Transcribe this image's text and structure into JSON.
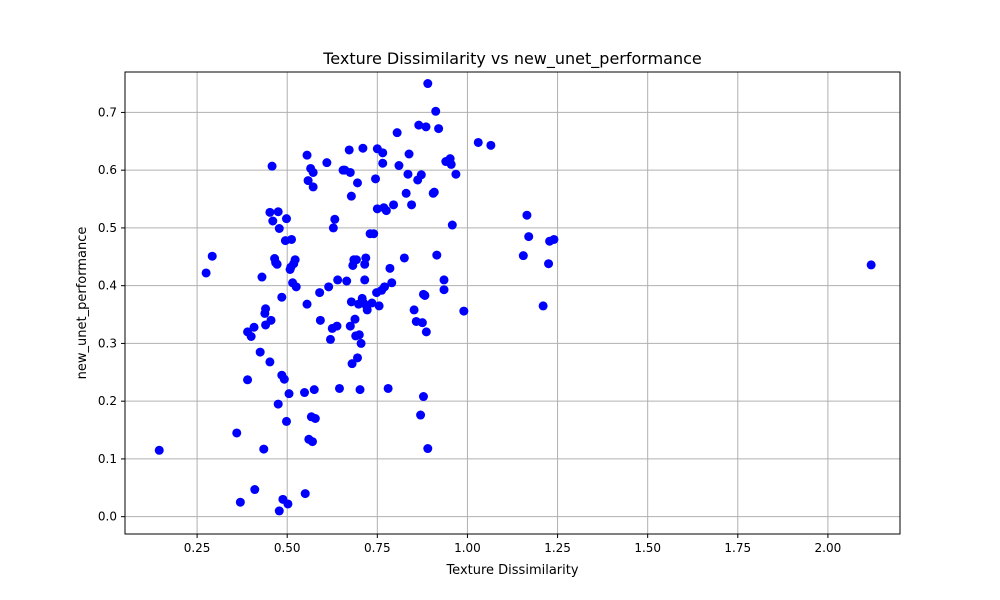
{
  "chart_data": {
    "type": "scatter",
    "title": "Texture Dissimilarity vs new_unet_performance",
    "xlabel": "Texture Dissimilarity",
    "ylabel": "new_unet_performance",
    "xlim": [
      0.05,
      2.2
    ],
    "ylim": [
      -0.03,
      0.77
    ],
    "xticks": [
      0.25,
      0.5,
      0.75,
      1.0,
      1.25,
      1.5,
      1.75,
      2.0
    ],
    "xtick_labels": [
      "0.25",
      "0.50",
      "0.75",
      "1.00",
      "1.25",
      "1.50",
      "1.75",
      "2.00"
    ],
    "yticks": [
      0.0,
      0.1,
      0.2,
      0.3,
      0.4,
      0.5,
      0.6,
      0.7
    ],
    "ytick_labels": [
      "0.0",
      "0.1",
      "0.2",
      "0.3",
      "0.4",
      "0.5",
      "0.6",
      "0.7"
    ],
    "grid": true,
    "marker_color": "#0000ff",
    "points": [
      [
        0.145,
        0.115
      ],
      [
        0.275,
        0.422
      ],
      [
        0.292,
        0.451
      ],
      [
        0.36,
        0.145
      ],
      [
        0.37,
        0.025
      ],
      [
        0.39,
        0.237
      ],
      [
        0.39,
        0.32
      ],
      [
        0.4,
        0.312
      ],
      [
        0.408,
        0.328
      ],
      [
        0.41,
        0.047
      ],
      [
        0.425,
        0.285
      ],
      [
        0.43,
        0.415
      ],
      [
        0.435,
        0.117
      ],
      [
        0.438,
        0.352
      ],
      [
        0.44,
        0.332
      ],
      [
        0.44,
        0.36
      ],
      [
        0.452,
        0.268
      ],
      [
        0.452,
        0.527
      ],
      [
        0.455,
        0.34
      ],
      [
        0.458,
        0.607
      ],
      [
        0.46,
        0.512
      ],
      [
        0.465,
        0.447
      ],
      [
        0.468,
        0.44
      ],
      [
        0.472,
        0.437
      ],
      [
        0.475,
        0.528
      ],
      [
        0.475,
        0.195
      ],
      [
        0.478,
        0.499
      ],
      [
        0.478,
        0.01
      ],
      [
        0.485,
        0.245
      ],
      [
        0.485,
        0.38
      ],
      [
        0.488,
        0.03
      ],
      [
        0.492,
        0.238
      ],
      [
        0.495,
        0.478
      ],
      [
        0.498,
        0.516
      ],
      [
        0.498,
        0.165
      ],
      [
        0.502,
        0.022
      ],
      [
        0.505,
        0.213
      ],
      [
        0.508,
        0.428
      ],
      [
        0.51,
        0.432
      ],
      [
        0.512,
        0.48
      ],
      [
        0.515,
        0.405
      ],
      [
        0.518,
        0.438
      ],
      [
        0.522,
        0.445
      ],
      [
        0.525,
        0.398
      ],
      [
        0.548,
        0.215
      ],
      [
        0.55,
        0.04
      ],
      [
        0.555,
        0.626
      ],
      [
        0.555,
        0.368
      ],
      [
        0.558,
        0.582
      ],
      [
        0.56,
        0.134
      ],
      [
        0.565,
        0.603
      ],
      [
        0.567,
        0.173
      ],
      [
        0.57,
        0.13
      ],
      [
        0.572,
        0.596
      ],
      [
        0.572,
        0.571
      ],
      [
        0.575,
        0.22
      ],
      [
        0.578,
        0.17
      ],
      [
        0.59,
        0.388
      ],
      [
        0.592,
        0.34
      ],
      [
        0.61,
        0.613
      ],
      [
        0.615,
        0.398
      ],
      [
        0.62,
        0.307
      ],
      [
        0.625,
        0.326
      ],
      [
        0.628,
        0.5
      ],
      [
        0.632,
        0.515
      ],
      [
        0.638,
        0.33
      ],
      [
        0.64,
        0.41
      ],
      [
        0.645,
        0.222
      ],
      [
        0.655,
        0.6
      ],
      [
        0.66,
        0.6
      ],
      [
        0.665,
        0.408
      ],
      [
        0.672,
        0.635
      ],
      [
        0.675,
        0.596
      ],
      [
        0.675,
        0.33
      ],
      [
        0.678,
        0.372
      ],
      [
        0.678,
        0.555
      ],
      [
        0.68,
        0.265
      ],
      [
        0.682,
        0.435
      ],
      [
        0.685,
        0.445
      ],
      [
        0.688,
        0.342
      ],
      [
        0.69,
        0.313
      ],
      [
        0.692,
        0.445
      ],
      [
        0.695,
        0.578
      ],
      [
        0.695,
        0.275
      ],
      [
        0.698,
        0.368
      ],
      [
        0.7,
        0.315
      ],
      [
        0.702,
        0.22
      ],
      [
        0.705,
        0.3
      ],
      [
        0.708,
        0.378
      ],
      [
        0.71,
        0.638
      ],
      [
        0.712,
        0.37
      ],
      [
        0.715,
        0.41
      ],
      [
        0.715,
        0.437
      ],
      [
        0.718,
        0.448
      ],
      [
        0.72,
        0.365
      ],
      [
        0.722,
        0.358
      ],
      [
        0.73,
        0.49
      ],
      [
        0.735,
        0.37
      ],
      [
        0.74,
        0.49
      ],
      [
        0.745,
        0.585
      ],
      [
        0.748,
        0.388
      ],
      [
        0.75,
        0.637
      ],
      [
        0.75,
        0.533
      ],
      [
        0.755,
        0.365
      ],
      [
        0.762,
        0.392
      ],
      [
        0.765,
        0.612
      ],
      [
        0.765,
        0.63
      ],
      [
        0.768,
        0.535
      ],
      [
        0.77,
        0.398
      ],
      [
        0.775,
        0.53
      ],
      [
        0.78,
        0.222
      ],
      [
        0.785,
        0.43
      ],
      [
        0.79,
        0.405
      ],
      [
        0.795,
        0.54
      ],
      [
        0.805,
        0.665
      ],
      [
        0.81,
        0.608
      ],
      [
        0.825,
        0.448
      ],
      [
        0.83,
        0.56
      ],
      [
        0.835,
        0.593
      ],
      [
        0.838,
        0.628
      ],
      [
        0.845,
        0.54
      ],
      [
        0.852,
        0.358
      ],
      [
        0.858,
        0.338
      ],
      [
        0.862,
        0.583
      ],
      [
        0.865,
        0.678
      ],
      [
        0.87,
        0.176
      ],
      [
        0.872,
        0.592
      ],
      [
        0.875,
        0.336
      ],
      [
        0.878,
        0.385
      ],
      [
        0.878,
        0.208
      ],
      [
        0.882,
        0.383
      ],
      [
        0.885,
        0.675
      ],
      [
        0.886,
        0.32
      ],
      [
        0.89,
        0.118
      ],
      [
        0.89,
        0.75
      ],
      [
        0.905,
        0.56
      ],
      [
        0.908,
        0.562
      ],
      [
        0.912,
        0.702
      ],
      [
        0.915,
        0.453
      ],
      [
        0.92,
        0.672
      ],
      [
        0.935,
        0.393
      ],
      [
        0.935,
        0.41
      ],
      [
        0.94,
        0.615
      ],
      [
        0.952,
        0.62
      ],
      [
        0.955,
        0.61
      ],
      [
        0.958,
        0.505
      ],
      [
        0.968,
        0.593
      ],
      [
        0.99,
        0.356
      ],
      [
        1.03,
        0.648
      ],
      [
        1.065,
        0.643
      ],
      [
        1.155,
        0.452
      ],
      [
        1.165,
        0.522
      ],
      [
        1.17,
        0.485
      ],
      [
        1.21,
        0.365
      ],
      [
        1.225,
        0.438
      ],
      [
        1.228,
        0.477
      ],
      [
        1.24,
        0.48
      ],
      [
        2.12,
        0.436
      ]
    ]
  }
}
